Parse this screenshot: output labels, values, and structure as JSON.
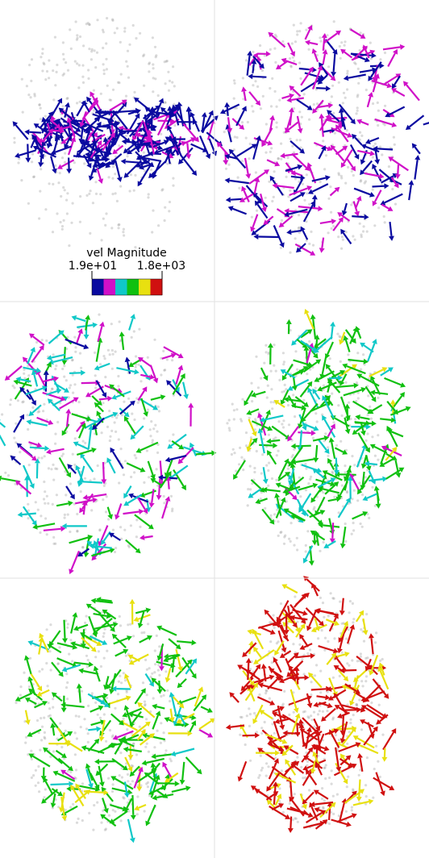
{
  "legend": {
    "title": "vel Magnitude",
    "min_label": "1.9e+01",
    "max_label": "1.8e+03",
    "colors": [
      "#0a0aa0",
      "#d010c8",
      "#10c8c8",
      "#10c010",
      "#e8e010",
      "#d01010"
    ]
  }
}
